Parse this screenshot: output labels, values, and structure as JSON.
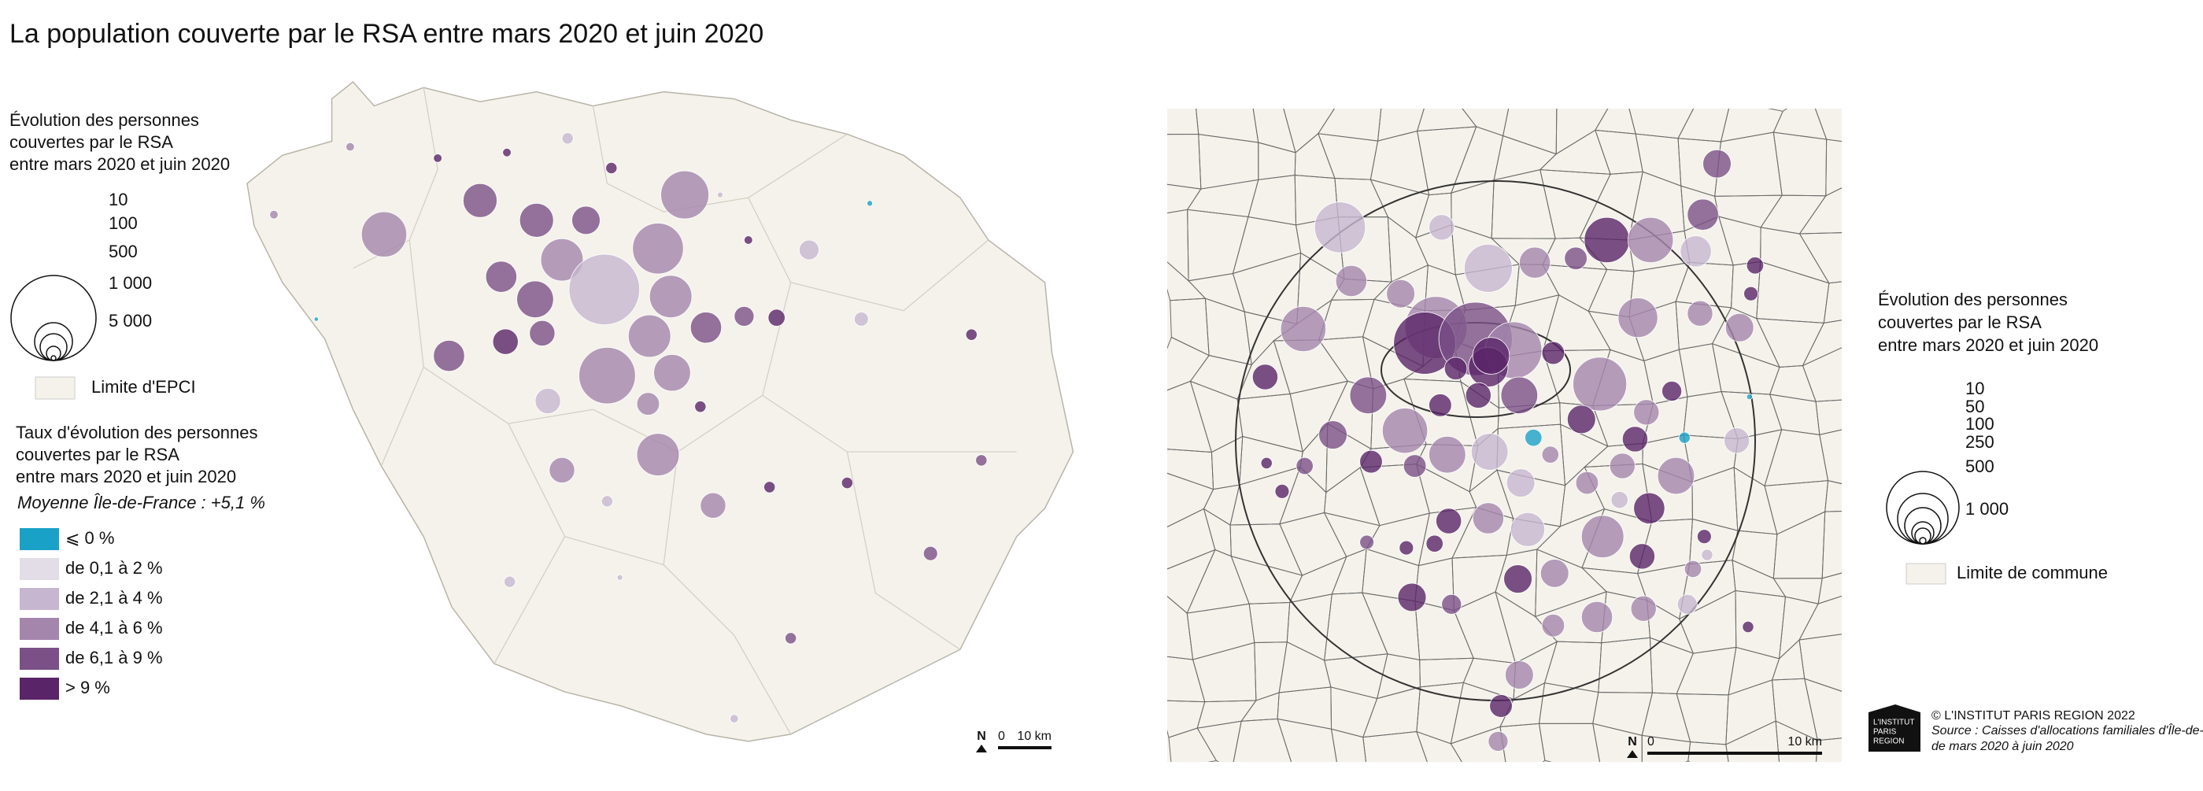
{
  "header": {
    "title": "La population couverte par le RSA entre mars 2020 et juin 2020"
  },
  "left_legend": {
    "size_title": [
      "Évolution des personnes",
      "couvertes par le RSA",
      "entre mars 2020 et juin 2020"
    ],
    "sizes": [
      "10",
      "100",
      "500",
      "1 000",
      "5 000"
    ],
    "boundary": "Limite d'EPCI",
    "color_title": [
      "Taux d'évolution des personnes",
      "couvertes par le RSA",
      "entre mars 2020 et juin 2020"
    ],
    "average": "Moyenne Île-de-France : +5,1 %",
    "classes": [
      {
        "label": "⩽ 0 %",
        "color": "#1aa1c8"
      },
      {
        "label": "de 0,1 à 2 %",
        "color": "#e2dde6"
      },
      {
        "label": "de 2,1 à 4 %",
        "color": "#c7b6cf"
      },
      {
        "label": "de 4,1 à 6 %",
        "color": "#a486ad"
      },
      {
        "label": "de 6,1 à 9 %",
        "color": "#7a5087"
      },
      {
        "label": "> 9 %",
        "color": "#5a2468"
      }
    ]
  },
  "left_scale": {
    "north": "N",
    "start": "0",
    "end": "10 km"
  },
  "right_legend": {
    "size_title": [
      "Évolution des personnes",
      "couvertes par le RSA",
      "entre mars 2020 et juin 2020"
    ],
    "sizes": [
      "10",
      "50",
      "100",
      "250",
      "500",
      "1 000"
    ],
    "boundary": "Limite de commune"
  },
  "right_scale": {
    "north": "N",
    "start": "0",
    "end": "10 km"
  },
  "footer": {
    "logo": [
      "L'INSTITUT",
      "PARIS",
      "REGION"
    ],
    "copyright": "© L'INSTITUT PARIS REGION 2022",
    "source": [
      "Source : Caisses d'allocations familiales d'Île-de-France,",
      "de mars 2020 à juin 2020"
    ]
  }
}
